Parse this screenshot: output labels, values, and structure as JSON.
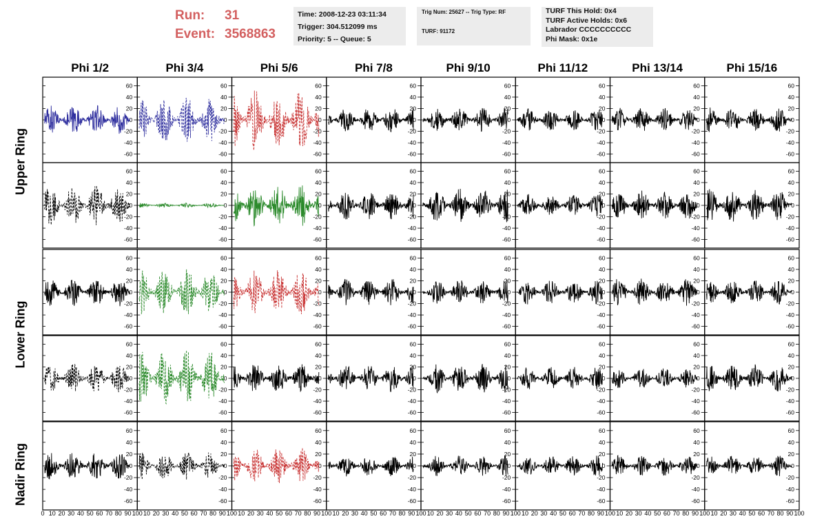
{
  "header": {
    "run_label": "Run:",
    "run_value": "31",
    "event_label": "Event:",
    "event_value": "3568863",
    "run_color": "#d35f5f"
  },
  "info_box_1": {
    "time": "Time: 2008-12-23 03:11:34",
    "trigger": "Trigger: 304.512099 ms",
    "priority": "Priority: 5 -- Queue: 5"
  },
  "info_box_2": {
    "trig": "Trig Num: 25627 -- Trig Type: RF",
    "turf": "TURF: 91172"
  },
  "info_box_3": {
    "hold": "TURF This Hold: 0x4",
    "active": "TURF Active Holds: 0x6",
    "labrador": "Labrador CCCCCCCCCC",
    "phimask": "Phi Mask: 0x1e"
  },
  "phi_headers": [
    "Phi 1/2",
    "Phi 3/4",
    "Phi 5/6",
    "Phi 7/8",
    "Phi 9/10",
    "Phi 11/12",
    "Phi 13/14",
    "Phi 15/16"
  ],
  "ring_labels": {
    "upper": "Upper Ring",
    "lower": "Lower Ring",
    "nadir": "Nadir Ring"
  },
  "axes": {
    "y_ticks": [
      "60",
      "40",
      "20",
      "0",
      "-20",
      "-40",
      "-60"
    ],
    "x_ticks_first": [
      "0",
      "10",
      "20",
      "30",
      "40",
      "50",
      "60",
      "70",
      "80",
      "90",
      "100"
    ],
    "x_ticks_other": [
      "10",
      "20",
      "30",
      "40",
      "50",
      "60",
      "70",
      "80",
      "90",
      "100"
    ],
    "ylim": [
      -75,
      75
    ],
    "xlim": [
      0,
      100
    ]
  },
  "chart_data": {
    "type": "line",
    "rows": 5,
    "cols": 8,
    "panels": [
      {
        "row": 0,
        "col": 0,
        "color": "#2e2e9e",
        "style": "solid",
        "amp": 26
      },
      {
        "row": 0,
        "col": 1,
        "color": "#2e2e9e",
        "style": "dashed",
        "amp": 40
      },
      {
        "row": 0,
        "col": 2,
        "color": "#c83232",
        "style": "dashed",
        "amp": 55
      },
      {
        "row": 0,
        "col": 3,
        "color": "#000000",
        "style": "solid",
        "amp": 22
      },
      {
        "row": 0,
        "col": 4,
        "color": "#000000",
        "style": "solid",
        "amp": 22
      },
      {
        "row": 0,
        "col": 5,
        "color": "#000000",
        "style": "solid",
        "amp": 20
      },
      {
        "row": 0,
        "col": 6,
        "color": "#000000",
        "style": "solid",
        "amp": 22
      },
      {
        "row": 0,
        "col": 7,
        "color": "#000000",
        "style": "solid",
        "amp": 22
      },
      {
        "row": 1,
        "col": 0,
        "color": "#000000",
        "style": "dashed",
        "amp": 36
      },
      {
        "row": 1,
        "col": 1,
        "color": "#2b8a2b",
        "style": "solid",
        "amp": 4
      },
      {
        "row": 1,
        "col": 2,
        "color": "#2b8a2b",
        "style": "solid",
        "amp": 38
      },
      {
        "row": 1,
        "col": 3,
        "color": "#000000",
        "style": "solid",
        "amp": 25
      },
      {
        "row": 1,
        "col": 4,
        "color": "#000000",
        "style": "solid",
        "amp": 30
      },
      {
        "row": 1,
        "col": 5,
        "color": "#000000",
        "style": "solid",
        "amp": 20
      },
      {
        "row": 1,
        "col": 6,
        "color": "#000000",
        "style": "solid",
        "amp": 26
      },
      {
        "row": 1,
        "col": 7,
        "color": "#000000",
        "style": "solid",
        "amp": 30
      },
      {
        "row": 2,
        "col": 0,
        "color": "#000000",
        "style": "solid",
        "amp": 25
      },
      {
        "row": 2,
        "col": 1,
        "color": "#2b8a2b",
        "style": "dashed",
        "amp": 42
      },
      {
        "row": 2,
        "col": 2,
        "color": "#c83232",
        "style": "dashed",
        "amp": 40
      },
      {
        "row": 2,
        "col": 3,
        "color": "#000000",
        "style": "solid",
        "amp": 24
      },
      {
        "row": 2,
        "col": 4,
        "color": "#000000",
        "style": "solid",
        "amp": 22
      },
      {
        "row": 2,
        "col": 5,
        "color": "#000000",
        "style": "solid",
        "amp": 22
      },
      {
        "row": 2,
        "col": 6,
        "color": "#000000",
        "style": "solid",
        "amp": 25
      },
      {
        "row": 2,
        "col": 7,
        "color": "#000000",
        "style": "solid",
        "amp": 22
      },
      {
        "row": 3,
        "col": 0,
        "color": "#000000",
        "style": "dashed",
        "amp": 26
      },
      {
        "row": 3,
        "col": 1,
        "color": "#2b8a2b",
        "style": "dashed",
        "amp": 50
      },
      {
        "row": 3,
        "col": 2,
        "color": "#000000",
        "style": "solid",
        "amp": 26
      },
      {
        "row": 3,
        "col": 3,
        "color": "#000000",
        "style": "solid",
        "amp": 25
      },
      {
        "row": 3,
        "col": 4,
        "color": "#000000",
        "style": "solid",
        "amp": 26
      },
      {
        "row": 3,
        "col": 5,
        "color": "#000000",
        "style": "solid",
        "amp": 20
      },
      {
        "row": 3,
        "col": 6,
        "color": "#000000",
        "style": "solid",
        "amp": 18
      },
      {
        "row": 3,
        "col": 7,
        "color": "#000000",
        "style": "solid",
        "amp": 25
      },
      {
        "row": 4,
        "col": 0,
        "color": "#000000",
        "style": "solid",
        "amp": 24
      },
      {
        "row": 4,
        "col": 1,
        "color": "#000000",
        "style": "dashed",
        "amp": 24
      },
      {
        "row": 4,
        "col": 2,
        "color": "#c83232",
        "style": "dashed",
        "amp": 32
      },
      {
        "row": 4,
        "col": 3,
        "color": "#000000",
        "style": "solid",
        "amp": 18
      },
      {
        "row": 4,
        "col": 4,
        "color": "#000000",
        "style": "solid",
        "amp": 18
      },
      {
        "row": 4,
        "col": 5,
        "color": "#000000",
        "style": "solid",
        "amp": 18
      },
      {
        "row": 4,
        "col": 6,
        "color": "#000000",
        "style": "solid",
        "amp": 18
      },
      {
        "row": 4,
        "col": 7,
        "color": "#000000",
        "style": "solid",
        "amp": 18
      }
    ]
  }
}
